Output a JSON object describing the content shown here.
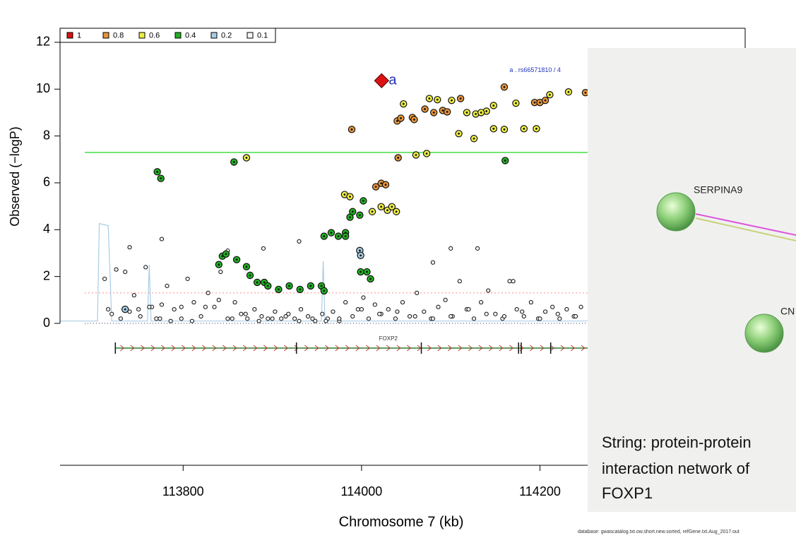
{
  "chart_data": {
    "type": "scatter",
    "xlabel": "Chromosome 7 (kb)",
    "ylabel": "Observed (−logP)",
    "xlim": [
      113662,
      114430
    ],
    "ylim": [
      0,
      12.6
    ],
    "xticks": [
      113800,
      114000,
      114200
    ],
    "yticks": [
      0,
      2,
      4,
      6,
      8,
      10,
      12
    ],
    "legend": "top-left",
    "footnote": "database: gwascatalog.txt.ow.short.new.sorted, refGene.txt.Aug_2017.out",
    "thresholds": [
      {
        "value": 7.3,
        "color": "#44dd44",
        "dash": false
      },
      {
        "value": 1.3,
        "color": "#ff8c8c",
        "dash": true
      }
    ],
    "recombination": {
      "color": "#a9cde4",
      "x": [
        113662,
        113704,
        113706,
        113716,
        113720,
        113760,
        113762,
        113764,
        113955,
        113957,
        113959,
        114430
      ],
      "values": [
        0.1,
        0.1,
        4.26,
        4.17,
        0.1,
        0.1,
        2.5,
        0.1,
        0.1,
        2.66,
        0.1,
        0.1
      ]
    },
    "gene": {
      "name": "FOXP2",
      "label_x": 114030,
      "start": 113724,
      "end": 114430,
      "exons": [
        113724,
        113927,
        114067,
        114176,
        114179,
        114212
      ]
    },
    "annotations": [
      {
        "text": "a",
        "x": 114022.5,
        "y": 10.36
      },
      {
        "text": "a . rs66571810 / 4",
        "x": 114245,
        "y": 10.8
      }
    ],
    "series": [
      {
        "name": "0.1",
        "color": "#f5f5f5",
        "x": [
          113712,
          113716,
          113720,
          113725,
          113730,
          113735,
          113740,
          113745,
          113752,
          113758,
          113765,
          113770,
          113776,
          113782,
          113790,
          113798,
          113805,
          113812,
          113820,
          113828,
          113835,
          113842,
          113850,
          113858,
          113865,
          113872,
          113880,
          113888,
          113895,
          113903,
          113910,
          113918,
          113925,
          113932,
          113940,
          113948,
          113956,
          113962,
          113968,
          113975,
          113982,
          113990,
          113996,
          114002,
          114008,
          114015,
          114022,
          114030,
          114038,
          114046,
          114054,
          114062,
          114070,
          114078,
          114086,
          114094,
          114102,
          114110,
          114118,
          114126,
          114134,
          114142,
          114150,
          114158,
          114166,
          114174,
          114182,
          114190,
          114198,
          114206,
          114214,
          114222,
          114230,
          114238,
          114246,
          113750,
          113762,
          113774,
          113786,
          113798,
          113810,
          113825,
          113840,
          113855,
          113870,
          113885,
          113900,
          113915,
          113930,
          113945,
          113960,
          113975,
          114000,
          114020,
          114040,
          114060,
          114080,
          114100,
          114120,
          114140,
          114160,
          114180,
          114200,
          114220,
          114240,
          113740,
          113776,
          113850,
          113890,
          113930,
          114080,
          114100,
          114130,
          114170
        ],
        "values": [
          1.9,
          0.6,
          0.4,
          2.3,
          0.2,
          2.2,
          0.5,
          1.2,
          0.3,
          2.4,
          0.7,
          0.2,
          0.8,
          1.6,
          0.6,
          0.2,
          1.9,
          0.9,
          0.3,
          1.3,
          0.7,
          2.2,
          0.2,
          0.9,
          0.4,
          0.2,
          0.6,
          0.3,
          0.2,
          0.5,
          0.2,
          0.4,
          0.2,
          0.6,
          0.3,
          0.1,
          0.4,
          0.2,
          0.5,
          0.1,
          0.9,
          0.3,
          0.6,
          1.1,
          0.2,
          0.8,
          0.4,
          0.6,
          0.2,
          0.9,
          0.3,
          1.3,
          0.5,
          0.2,
          0.7,
          1.0,
          0.3,
          1.8,
          0.6,
          0.2,
          0.9,
          1.4,
          0.4,
          0.2,
          1.8,
          0.6,
          0.3,
          0.9,
          0.2,
          0.5,
          0.7,
          0.2,
          0.6,
          0.3,
          0.7,
          0.6,
          0.7,
          0.2,
          0.1,
          0.7,
          0.1,
          0.7,
          1.0,
          0.2,
          0.4,
          0.1,
          0.2,
          0.3,
          0.1,
          0.2,
          0.1,
          0.2,
          0.6,
          0.4,
          0.5,
          0.3,
          0.2,
          0.3,
          0.6,
          0.4,
          0.3,
          0.5,
          0.2,
          0.4,
          0.3,
          3.25,
          3.6,
          3.1,
          3.2,
          3.5,
          2.6,
          3.2,
          3.2,
          1.8
        ]
      },
      {
        "name": "0.2",
        "color": "#a9cde4",
        "x": [
          113998,
          113999,
          113735
        ],
        "values": [
          3.11,
          2.9,
          0.6
        ]
      },
      {
        "name": "0.4",
        "color": "#22b022",
        "x": [
          113771,
          113775,
          113857,
          114161,
          113844,
          113848,
          113860,
          113871,
          113840,
          113875,
          113883,
          113891,
          113895,
          113907,
          113919,
          113931,
          113943,
          113955,
          113958,
          113958,
          113966,
          113974,
          113982,
          113987,
          113990,
          113998,
          113999,
          114006,
          114010,
          114002,
          113982
        ],
        "values": [
          6.47,
          6.19,
          6.89,
          6.95,
          2.87,
          2.96,
          2.72,
          2.42,
          2.51,
          2.05,
          1.75,
          1.75,
          1.6,
          1.45,
          1.6,
          1.45,
          1.6,
          1.6,
          1.39,
          3.72,
          3.87,
          3.72,
          3.87,
          4.53,
          4.77,
          4.62,
          2.2,
          2.2,
          1.9,
          5.23,
          3.72
        ]
      },
      {
        "name": "0.6",
        "color": "#eeee44",
        "x": [
          114047,
          114076,
          114101,
          114128,
          114118,
          114140,
          114148,
          114173,
          114182,
          114196,
          114126,
          114109,
          114061,
          114073,
          114211,
          114232,
          114148,
          114160,
          113981,
          113987,
          114022,
          114029,
          114034,
          114039,
          114012,
          113871,
          114134,
          114085
        ],
        "values": [
          9.37,
          9.6,
          9.52,
          8.94,
          9.0,
          9.06,
          9.3,
          9.4,
          8.31,
          8.31,
          7.89,
          8.1,
          7.19,
          7.25,
          9.76,
          9.88,
          8.31,
          8.28,
          5.5,
          5.41,
          4.98,
          4.83,
          4.98,
          4.77,
          4.77,
          7.07,
          9.0,
          9.55
        ]
      },
      {
        "name": "0.8",
        "color": "#e8953a",
        "x": [
          113989,
          114040,
          114044,
          114057,
          114059,
          114071,
          114081,
          114091,
          114096,
          114111,
          114160,
          114041,
          114251,
          114016,
          114022,
          114027,
          114194,
          114200,
          114206
        ],
        "values": [
          8.28,
          8.64,
          8.76,
          8.79,
          8.7,
          9.15,
          9.0,
          9.09,
          9.03,
          9.6,
          10.09,
          7.07,
          9.85,
          5.83,
          5.98,
          5.92,
          9.43,
          9.43,
          9.52
        ]
      },
      {
        "name": "1",
        "color": "#dd1111",
        "x": [
          114022.5
        ],
        "values": [
          10.36
        ]
      }
    ]
  },
  "overlay": {
    "caption": [
      "String: protein-protein",
      "interaction network of",
      "FOXP1"
    ],
    "nodes": [
      {
        "label": "SERPINA9"
      },
      {
        "label": "CN"
      }
    ]
  }
}
